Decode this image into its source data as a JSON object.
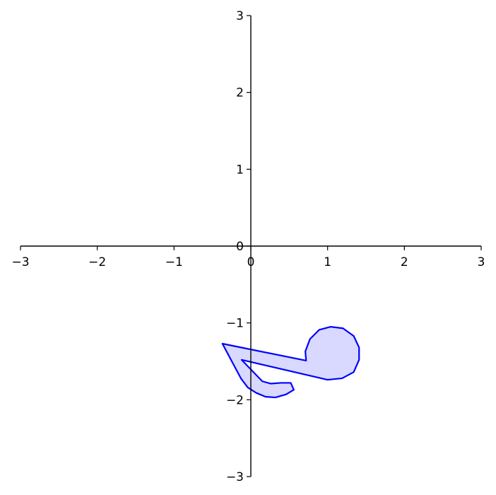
{
  "chart_data": {
    "type": "area",
    "title": "",
    "xlabel": "",
    "ylabel": "",
    "xlim": [
      -3,
      3
    ],
    "ylim": [
      -3,
      3
    ],
    "xticks": [
      -3,
      -2,
      -1,
      0,
      1,
      2,
      3
    ],
    "yticks": [
      -3,
      -2,
      -1,
      0,
      1,
      2,
      3
    ],
    "x_tick_labels": [
      "−3",
      "−2",
      "−1",
      "0",
      "1",
      "2",
      "3"
    ],
    "y_tick_labels": [
      "−3",
      "−2",
      "−1",
      "0",
      "1",
      "2",
      "3"
    ],
    "grid": false,
    "legend": "none",
    "spines": "centered at origin",
    "series": [
      {
        "type": "polygon",
        "stroke_color": "#0000ff",
        "fill_color": "#d9d9ff",
        "points": [
          [
            -0.37,
            -1.27
          ],
          [
            0.72,
            -1.49
          ],
          [
            0.71,
            -1.37
          ],
          [
            0.77,
            -1.21
          ],
          [
            0.89,
            -1.09
          ],
          [
            1.04,
            -1.05
          ],
          [
            1.2,
            -1.07
          ],
          [
            1.34,
            -1.17
          ],
          [
            1.41,
            -1.32
          ],
          [
            1.41,
            -1.48
          ],
          [
            1.34,
            -1.64
          ],
          [
            1.19,
            -1.72
          ],
          [
            1.0,
            -1.74
          ],
          [
            -0.12,
            -1.48
          ],
          [
            0.15,
            -1.76
          ],
          [
            0.26,
            -1.79
          ],
          [
            0.39,
            -1.78
          ],
          [
            0.52,
            -1.78
          ],
          [
            0.56,
            -1.87
          ],
          [
            0.46,
            -1.93
          ],
          [
            0.32,
            -1.97
          ],
          [
            0.19,
            -1.96
          ],
          [
            0.07,
            -1.91
          ],
          [
            -0.04,
            -1.84
          ],
          [
            -0.13,
            -1.72
          ]
        ]
      }
    ]
  }
}
